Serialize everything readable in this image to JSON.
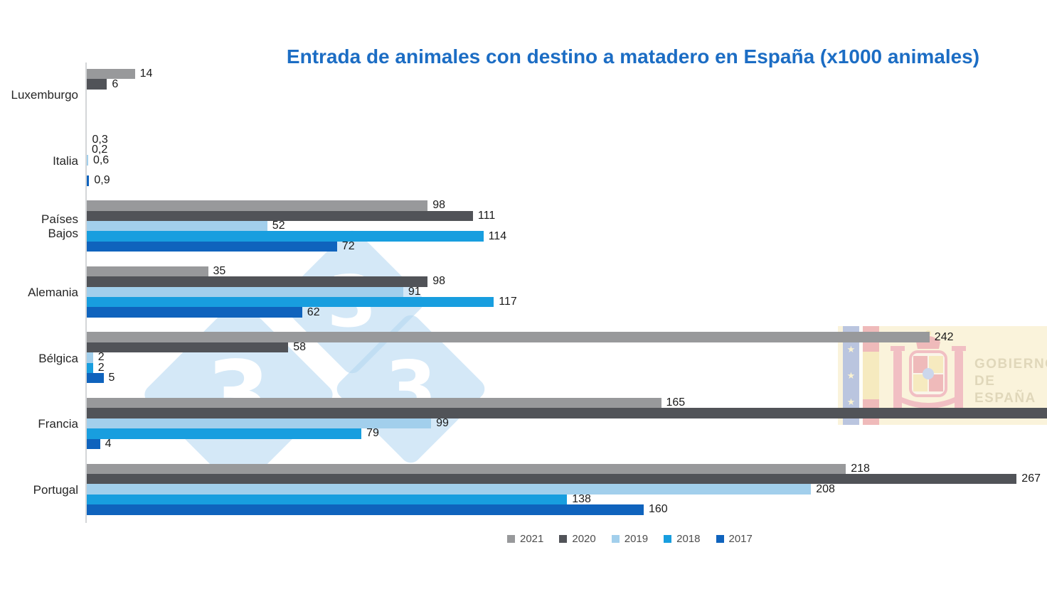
{
  "chart_data": {
    "type": "bar",
    "orientation": "horizontal",
    "grouped": true,
    "title": "Entrada de animales con destino a matadero en España (x1000 animales)",
    "title_color": "#1c6dc4",
    "categories": [
      "Luxemburgo",
      "Italia",
      "Países Bajos",
      "Alemania",
      "Bélgica",
      "Francia",
      "Portugal"
    ],
    "category_display": [
      "Luxemburgo",
      "Italia",
      "Países\nBajos",
      "Alemania",
      "Bélgica",
      "Francia",
      "Portugal"
    ],
    "series": [
      {
        "name": "2021",
        "color": "#98999b",
        "values": [
          14,
          0.3,
          98,
          35,
          242,
          165,
          218
        ],
        "labels": [
          "14",
          "0,3",
          "98",
          "35",
          "242",
          "165",
          "218"
        ]
      },
      {
        "name": "2020",
        "color": "#515358",
        "values": [
          6,
          0.2,
          111,
          98,
          58,
          null,
          267
        ],
        "labels": [
          "6",
          "0,2",
          "111",
          "98",
          "58",
          null,
          "267"
        ],
        "clipped": [
          false,
          false,
          false,
          false,
          false,
          true,
          false
        ]
      },
      {
        "name": "2019",
        "color": "#a2cfec",
        "values": [
          null,
          0.6,
          52,
          91,
          2,
          99,
          208
        ],
        "labels": [
          null,
          "0,6",
          "52",
          "91",
          "2",
          "99",
          "208"
        ]
      },
      {
        "name": "2018",
        "color": "#189edf",
        "values": [
          null,
          null,
          114,
          117,
          2,
          79,
          138
        ],
        "labels": [
          null,
          null,
          "114",
          "117",
          "2",
          "79",
          "138"
        ]
      },
      {
        "name": "2017",
        "color": "#0f63bd",
        "values": [
          null,
          0.9,
          72,
          62,
          5,
          4,
          160
        ],
        "labels": [
          null,
          "0,9",
          "72",
          "62",
          "5",
          "4",
          "160"
        ]
      }
    ],
    "notes": {
      "francia_2020_bar": "bar extends beyond right edge of image, value label not visible",
      "decimal_format": "comma"
    },
    "legend_position": "bottom",
    "gridlines": false,
    "value_axis_labels": false
  },
  "watermarks": {
    "pig333": {
      "digits": [
        "3",
        "3",
        "3"
      ]
    },
    "gobierno": {
      "stars": [
        "★",
        "★",
        "★"
      ],
      "line1": "GOBIERNO",
      "line2": "DE ESPAÑA"
    }
  }
}
